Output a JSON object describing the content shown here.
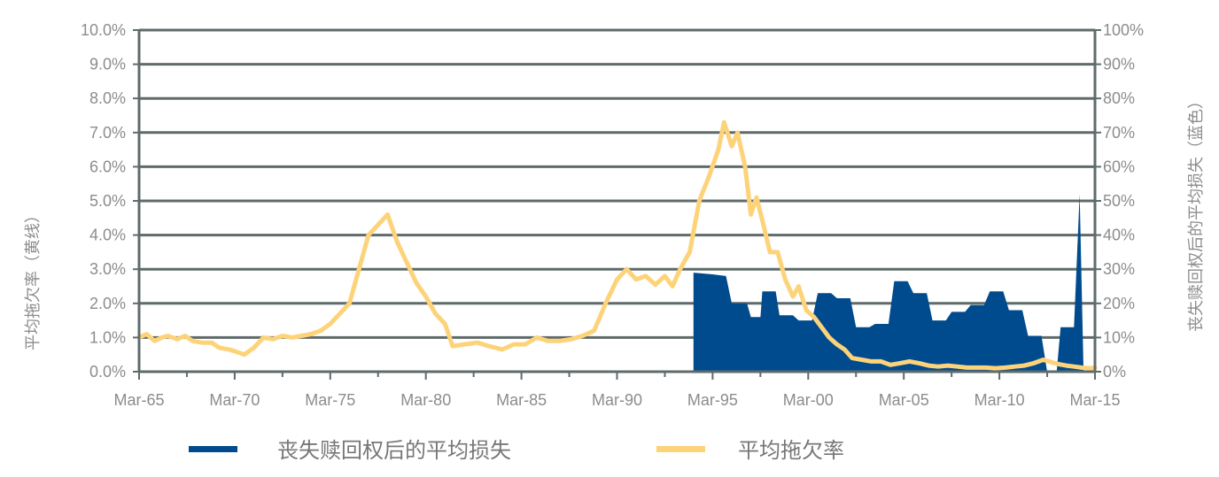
{
  "chart_data": {
    "type": "area",
    "title": "",
    "y_left_label": "平均拖欠率（黄线）",
    "y_right_label": "丧失赎回权后的平均损失（蓝色）",
    "y_left_ticks": [
      "0.0%",
      "1.0%",
      "2.0%",
      "3.0%",
      "4.0%",
      "5.0%",
      "6.0%",
      "7.0%",
      "8.0%",
      "9.0%",
      "10.0%"
    ],
    "y_right_ticks": [
      "0%",
      "10%",
      "20%",
      "30%",
      "40%",
      "50%",
      "60%",
      "70%",
      "80%",
      "90%",
      "100%"
    ],
    "x_ticks": [
      {
        "label": "Mar-65",
        "year": 1965
      },
      {
        "label": "Mar-70",
        "year": 1970
      },
      {
        "label": "Mar-75",
        "year": 1975
      },
      {
        "label": "Mar-80",
        "year": 1980
      },
      {
        "label": "Mar-85",
        "year": 1985
      },
      {
        "label": "Mar-90",
        "year": 1990
      },
      {
        "label": "Mar-95",
        "year": 1995
      },
      {
        "label": "Mar-00",
        "year": 2000
      },
      {
        "label": "Mar-05",
        "year": 2005
      },
      {
        "label": "Mar-10",
        "year": 2010
      },
      {
        "label": "Mar-15",
        "year": 2015
      }
    ],
    "x_range": [
      1965,
      2015
    ],
    "y_left_range": [
      0,
      10
    ],
    "y_right_range": [
      0,
      100
    ],
    "grid": true,
    "legend_position": "bottom",
    "series": [
      {
        "name": "丧失赎回权后的平均损失",
        "type": "area",
        "axis": "right",
        "unit": "%",
        "color": "#004b8d",
        "points": [
          [
            1994.0,
            29
          ],
          [
            1995.0,
            28.5
          ],
          [
            1995.7,
            28
          ],
          [
            1996.0,
            20
          ],
          [
            1996.8,
            20
          ],
          [
            1997.0,
            16
          ],
          [
            1997.5,
            16
          ],
          [
            1997.6,
            23.5
          ],
          [
            1998.3,
            23.5
          ],
          [
            1998.5,
            16.5
          ],
          [
            1999.2,
            16.5
          ],
          [
            1999.5,
            15
          ],
          [
            2000.2,
            15
          ],
          [
            2000.5,
            23
          ],
          [
            2001.2,
            23
          ],
          [
            2001.5,
            21.5
          ],
          [
            2002.2,
            21.5
          ],
          [
            2002.5,
            13
          ],
          [
            2003.2,
            13
          ],
          [
            2003.5,
            14
          ],
          [
            2004.2,
            14
          ],
          [
            2004.5,
            26.5
          ],
          [
            2005.2,
            26.5
          ],
          [
            2005.5,
            23
          ],
          [
            2006.2,
            23
          ],
          [
            2006.5,
            15
          ],
          [
            2007.2,
            15
          ],
          [
            2007.5,
            17.5
          ],
          [
            2008.2,
            17.5
          ],
          [
            2008.5,
            19.5
          ],
          [
            2009.2,
            19.5
          ],
          [
            2009.5,
            23.5
          ],
          [
            2010.2,
            23.5
          ],
          [
            2010.5,
            18
          ],
          [
            2011.2,
            18
          ],
          [
            2011.5,
            10.5
          ],
          [
            2012.2,
            10.5
          ],
          [
            2012.5,
            0
          ],
          [
            2013.0,
            0
          ],
          [
            2013.2,
            13
          ],
          [
            2013.9,
            13
          ],
          [
            2014.2,
            52
          ],
          [
            2014.4,
            0
          ]
        ]
      },
      {
        "name": "平均拖欠率",
        "type": "line",
        "axis": "left",
        "unit": "%",
        "color": "#fdd37a",
        "points": [
          [
            1965.0,
            1.0
          ],
          [
            1965.4,
            1.1
          ],
          [
            1965.8,
            0.9
          ],
          [
            1966.2,
            1.0
          ],
          [
            1966.5,
            1.05
          ],
          [
            1967.0,
            0.95
          ],
          [
            1967.4,
            1.05
          ],
          [
            1967.8,
            0.9
          ],
          [
            1968.3,
            0.85
          ],
          [
            1968.8,
            0.85
          ],
          [
            1969.2,
            0.7
          ],
          [
            1969.7,
            0.65
          ],
          [
            1970.0,
            0.6
          ],
          [
            1970.5,
            0.5
          ],
          [
            1971.0,
            0.7
          ],
          [
            1971.5,
            1.0
          ],
          [
            1972.0,
            0.95
          ],
          [
            1972.5,
            1.05
          ],
          [
            1973.0,
            1.0
          ],
          [
            1973.5,
            1.05
          ],
          [
            1974.0,
            1.1
          ],
          [
            1974.5,
            1.2
          ],
          [
            1975.0,
            1.4
          ],
          [
            1975.5,
            1.7
          ],
          [
            1976.0,
            2.0
          ],
          [
            1976.5,
            3.0
          ],
          [
            1977.0,
            4.0
          ],
          [
            1977.5,
            4.3
          ],
          [
            1978.0,
            4.6
          ],
          [
            1978.5,
            3.8
          ],
          [
            1979.0,
            3.2
          ],
          [
            1979.5,
            2.6
          ],
          [
            1980.0,
            2.2
          ],
          [
            1980.5,
            1.7
          ],
          [
            1981.0,
            1.4
          ],
          [
            1981.4,
            0.75
          ],
          [
            1982.0,
            0.8
          ],
          [
            1982.7,
            0.85
          ],
          [
            1983.3,
            0.75
          ],
          [
            1984.0,
            0.65
          ],
          [
            1984.6,
            0.8
          ],
          [
            1985.2,
            0.8
          ],
          [
            1985.8,
            1.0
          ],
          [
            1986.4,
            0.9
          ],
          [
            1987.0,
            0.9
          ],
          [
            1987.6,
            0.95
          ],
          [
            1988.2,
            1.05
          ],
          [
            1988.8,
            1.2
          ],
          [
            1989.4,
            2.0
          ],
          [
            1990.0,
            2.7
          ],
          [
            1990.5,
            3.0
          ],
          [
            1991.0,
            2.7
          ],
          [
            1991.5,
            2.8
          ],
          [
            1992.0,
            2.55
          ],
          [
            1992.5,
            2.8
          ],
          [
            1992.9,
            2.5
          ],
          [
            1993.3,
            3.0
          ],
          [
            1993.8,
            3.5
          ],
          [
            1994.3,
            5.0
          ],
          [
            1994.8,
            5.7
          ],
          [
            1995.3,
            6.5
          ],
          [
            1995.6,
            7.3
          ],
          [
            1996.0,
            6.6
          ],
          [
            1996.3,
            7.0
          ],
          [
            1996.7,
            6.0
          ],
          [
            1997.0,
            4.6
          ],
          [
            1997.3,
            5.1
          ],
          [
            1997.7,
            4.2
          ],
          [
            1998.0,
            3.5
          ],
          [
            1998.4,
            3.5
          ],
          [
            1998.8,
            2.7
          ],
          [
            1999.2,
            2.2
          ],
          [
            1999.5,
            2.5
          ],
          [
            1999.9,
            1.8
          ],
          [
            2000.3,
            1.6
          ],
          [
            2000.7,
            1.3
          ],
          [
            2001.1,
            1.0
          ],
          [
            2001.5,
            0.8
          ],
          [
            2001.9,
            0.65
          ],
          [
            2002.3,
            0.4
          ],
          [
            2002.8,
            0.35
          ],
          [
            2003.3,
            0.3
          ],
          [
            2003.8,
            0.3
          ],
          [
            2004.3,
            0.2
          ],
          [
            2004.8,
            0.25
          ],
          [
            2005.3,
            0.3
          ],
          [
            2005.8,
            0.25
          ],
          [
            2006.3,
            0.18
          ],
          [
            2006.8,
            0.15
          ],
          [
            2007.3,
            0.18
          ],
          [
            2007.8,
            0.15
          ],
          [
            2008.3,
            0.12
          ],
          [
            2008.8,
            0.12
          ],
          [
            2009.3,
            0.12
          ],
          [
            2009.8,
            0.1
          ],
          [
            2010.3,
            0.12
          ],
          [
            2010.8,
            0.15
          ],
          [
            2011.3,
            0.18
          ],
          [
            2011.8,
            0.25
          ],
          [
            2012.3,
            0.35
          ],
          [
            2012.7,
            0.28
          ],
          [
            2013.1,
            0.22
          ],
          [
            2013.5,
            0.18
          ],
          [
            2013.9,
            0.15
          ],
          [
            2014.3,
            0.12
          ],
          [
            2014.8,
            0.1
          ],
          [
            2015.0,
            0.12
          ]
        ]
      }
    ]
  },
  "legend": [
    {
      "label": "丧失赎回权后的平均损失",
      "color": "#004b8d"
    },
    {
      "label": "平均拖欠率",
      "color": "#fdd37a"
    }
  ]
}
